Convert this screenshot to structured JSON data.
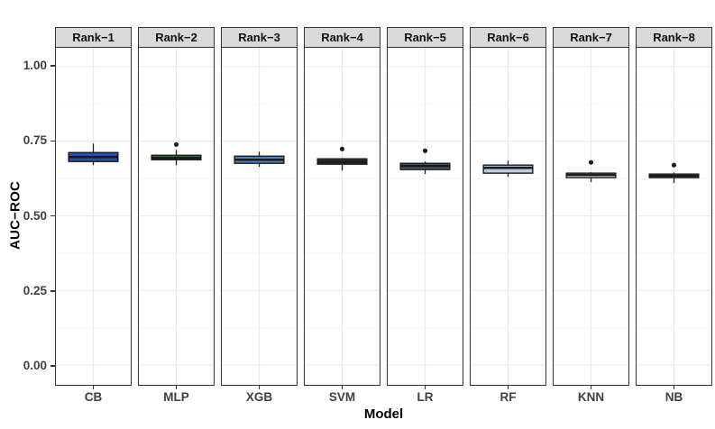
{
  "chart_data": {
    "type": "boxplot",
    "xlabel": "Model",
    "ylabel": "AUC−ROC",
    "ylim": [
      -0.066,
      1.064
    ],
    "yticks": [
      0.0,
      0.25,
      0.5,
      0.75,
      1.0
    ],
    "ytick_labels": [
      "0.00",
      "0.25",
      "0.50",
      "0.75",
      "1.00"
    ],
    "yticks_minor": [
      0.125,
      0.375,
      0.625,
      0.875
    ],
    "grid": "major+minor, horizontal + one vertical center line per facet",
    "legend": "none",
    "facets": [
      {
        "rank": "Rank−1",
        "model": "CB",
        "fill": "#24549E",
        "whisker_low": 0.67,
        "q1": 0.682,
        "median": 0.697,
        "q3": 0.712,
        "whisker_high": 0.742,
        "outliers": []
      },
      {
        "rank": "Rank−2",
        "model": "MLP",
        "fill": "#2A5CA8",
        "whisker_low": 0.67,
        "q1": 0.688,
        "median": 0.694,
        "q3": 0.703,
        "whisker_high": 0.721,
        "outliers": [
          0.739
        ]
      },
      {
        "rank": "Rank−3",
        "model": "XGB",
        "fill": "#4584C6",
        "whisker_low": 0.664,
        "q1": 0.676,
        "median": 0.688,
        "q3": 0.7,
        "whisker_high": 0.715,
        "outliers": []
      },
      {
        "rank": "Rank−4",
        "model": "SVM",
        "fill": "#33383D",
        "whisker_low": 0.652,
        "q1": 0.673,
        "median": 0.681,
        "q3": 0.691,
        "whisker_high": 0.694,
        "outliers": [
          0.724
        ]
      },
      {
        "rank": "Rank−5",
        "model": "LR",
        "fill": "#4D5A66",
        "whisker_low": 0.64,
        "q1": 0.655,
        "median": 0.667,
        "q3": 0.676,
        "whisker_high": 0.682,
        "outliers": [
          0.718
        ]
      },
      {
        "rank": "Rank−6",
        "model": "RF",
        "fill": "#BACBDC",
        "whisker_low": 0.631,
        "q1": 0.643,
        "median": 0.661,
        "q3": 0.67,
        "whisker_high": 0.685,
        "outliers": []
      },
      {
        "rank": "Rank−7",
        "model": "KNN",
        "fill": "#DBDFE3",
        "whisker_low": 0.613,
        "q1": 0.628,
        "median": 0.637,
        "q3": 0.643,
        "whisker_high": 0.646,
        "outliers": [
          0.679
        ]
      },
      {
        "rank": "Rank−8",
        "model": "NB",
        "fill": "#C9CFD6",
        "whisker_low": 0.61,
        "q1": 0.628,
        "median": 0.634,
        "q3": 0.64,
        "whisker_high": 0.645,
        "outliers": [
          0.67
        ]
      }
    ],
    "colors": {
      "box_border": "#1A1A1A",
      "strip_bg": "#D9D9D9",
      "panel_border": "#333333",
      "grid_major": "#EAEAEA",
      "grid_minor": "#F5F5F5",
      "tick_text": "#3F3F3F",
      "axis_title": "#000000"
    }
  }
}
